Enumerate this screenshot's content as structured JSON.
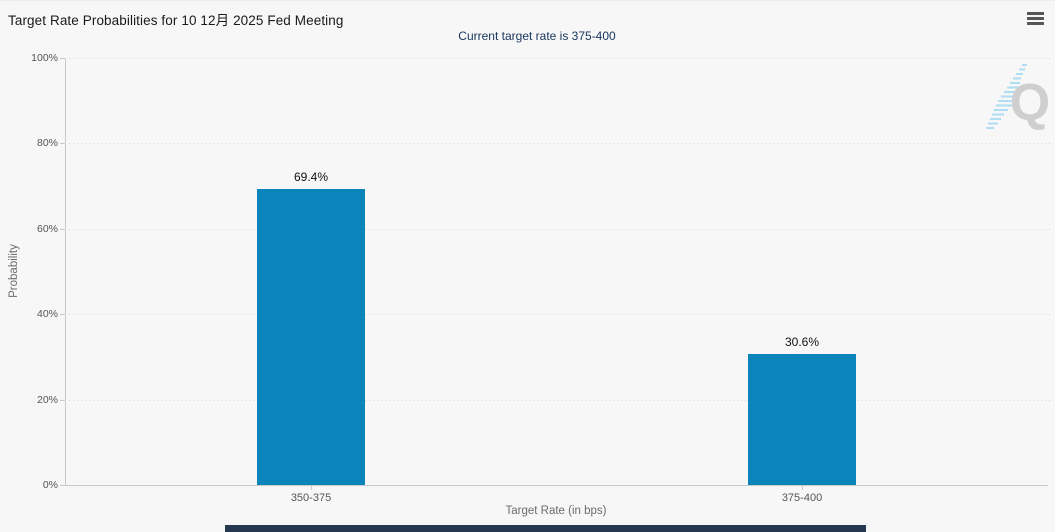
{
  "page": {
    "background": "#f7f7f7"
  },
  "header": {
    "title": "Target Rate Probabilities for 10 12月 2025 Fed Meeting",
    "subtitle": "Current target rate is 375-400"
  },
  "menu": {
    "icon": "hamburger-icon"
  },
  "watermark": {
    "letter": "Q"
  },
  "chart_data": {
    "type": "bar",
    "title": "Target Rate Probabilities for 10 12月 2025 Fed Meeting",
    "subtitle": "Current target rate is 375-400",
    "categories": [
      "350-375",
      "375-400"
    ],
    "values": [
      69.4,
      30.6
    ],
    "value_labels": [
      "69.4%",
      "30.6%"
    ],
    "xlabel": "Target Rate (in bps)",
    "ylabel": "Probability",
    "ylim": [
      0,
      100
    ],
    "yticks": [
      "0%",
      "20%",
      "40%",
      "60%",
      "80%",
      "100%"
    ],
    "grid": "horizontal-dotted",
    "legend_position": "none",
    "bar_color": "#0a84ba",
    "gridline_color": "#d4d4d4",
    "subtitle_color": "#17365d"
  }
}
